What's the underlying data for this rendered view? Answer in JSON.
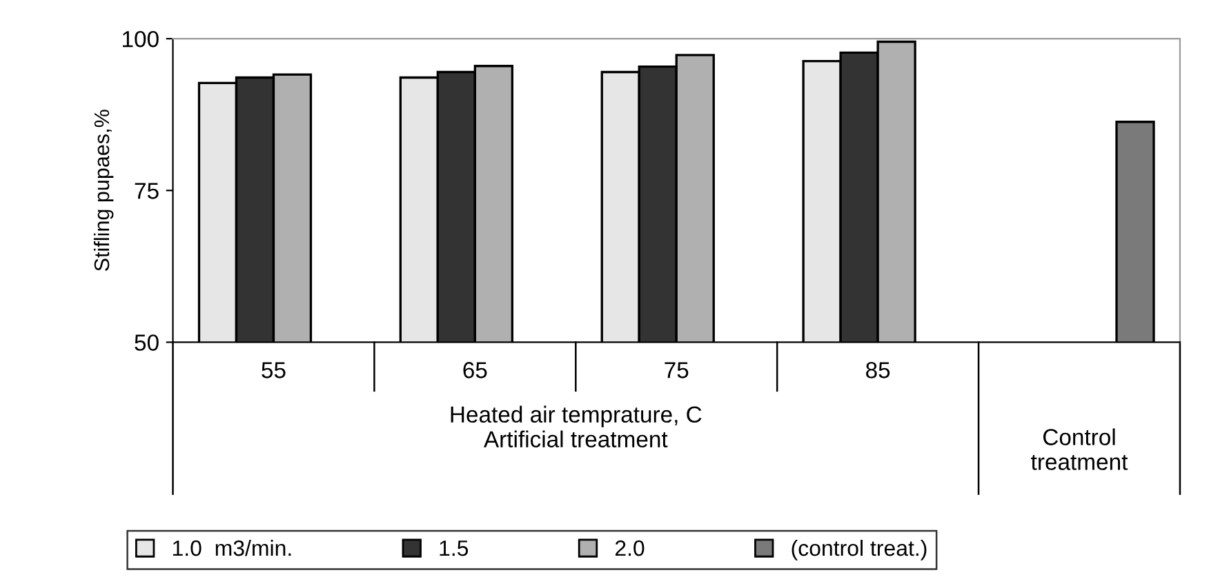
{
  "chart_data": {
    "type": "bar",
    "ylabel": "Stifling pupaes,%",
    "xlabel": "Heated air temprature, C\nArtificial treatment",
    "annotations": [
      "Control\ntreatment"
    ],
    "categories": [
      "55",
      "65",
      "75",
      "85",
      null
    ],
    "series": [
      {
        "name": "1.0  m3/min.",
        "color": "#e6e6e6",
        "values": [
          92.7,
          93.6,
          94.5,
          96.3,
          null
        ]
      },
      {
        "name": "1.5",
        "color": "#333333",
        "values": [
          93.6,
          94.5,
          95.4,
          97.7,
          null
        ]
      },
      {
        "name": "2.0",
        "color": "#b0b0b0",
        "values": [
          94.1,
          95.5,
          97.3,
          99.5,
          null
        ]
      },
      {
        "name": "(control treat.)",
        "color": "#7a7a7a",
        "values": [
          null,
          null,
          null,
          null,
          86.3
        ]
      }
    ],
    "ylim": [
      50,
      100
    ],
    "yticks": [
      50,
      75,
      100
    ],
    "grid": false,
    "legend": "bottom"
  }
}
